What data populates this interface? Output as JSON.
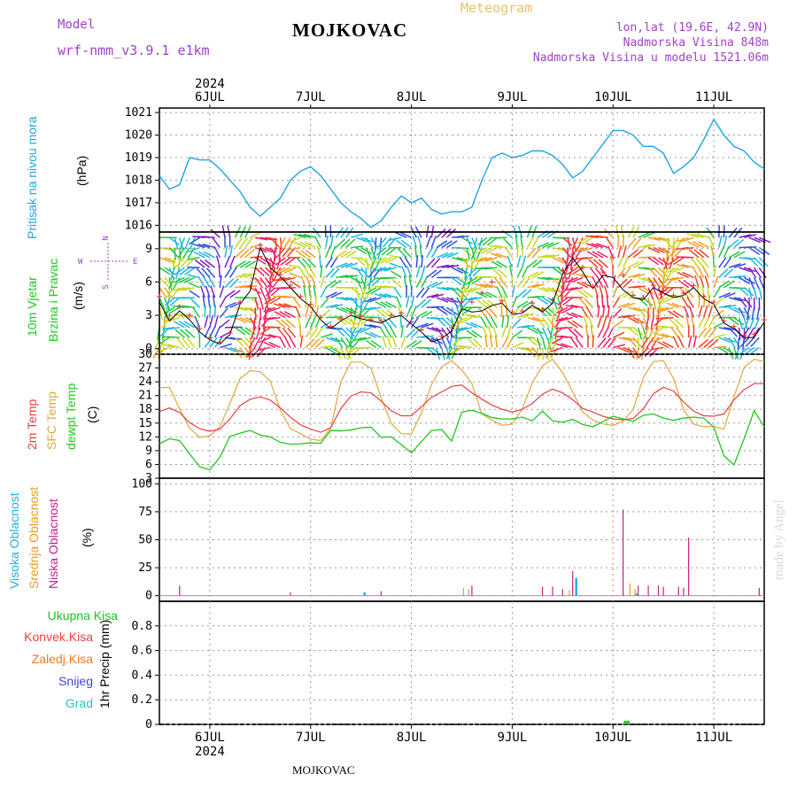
{
  "header": {
    "model_label": "Model",
    "model_name": "wrf-nmm_v3.9.1 e1km",
    "title": "MOJKOVAC",
    "meteogram_label": "Meteogram",
    "lonlat": "lon,lat (19.6E, 42.9N)",
    "altitude": "Nadmorska Visina 848m",
    "model_altitude": "Nadmorska Visina u modelu 1521.06m",
    "footer_title": "MOJKOVAC",
    "credit": "made by Angel",
    "year_top": "2024",
    "year_bottom": "2024"
  },
  "days": [
    "6JUL",
    "7JUL",
    "8JUL",
    "9JUL",
    "10JUL",
    "11JUL"
  ],
  "colors": {
    "pressure": "#1ea5e0",
    "t2m": "#e84040",
    "sfc": "#e0a840",
    "dewpt": "#20c820",
    "high_cloud": "#20b0e8",
    "mid_cloud": "#e0a020",
    "low_cloud": "#c0208a",
    "wind_speed": "#000000",
    "wind_gust": "#e83030",
    "total_precip": "#20c020",
    "conv_precip": "#e84040",
    "frozen_precip": "#f07820",
    "snow": "#4040e0",
    "hail": "#20c8c0"
  },
  "panels": {
    "pressure": {
      "label1": "Pritisak na nivou mora",
      "unit": "(hPa)"
    },
    "wind": {
      "label1": "10m Vjetar",
      "label2": "Brzina i Pravac",
      "unit": "(m/s)",
      "compass_n": "N",
      "compass_w": "W",
      "compass_e": "E",
      "compass_s": "S"
    },
    "temp": {
      "label1": "2m Temp",
      "label2": "SFC Temp",
      "label3": "dewpt Temp",
      "unit": "(C)"
    },
    "cloud": {
      "label1": "Visoka Oblacnost",
      "label2": "Srednja Oblacnost",
      "label3": "Niska Oblacnost",
      "unit": "(%)"
    },
    "precip": {
      "label1": "Ukupna Kisa",
      "label2": "Konvek.Kisa",
      "label3": "Zaledj.Kisa",
      "label4": "Snijeg",
      "label5": "Grad",
      "unit": "1hr Precip (mm)"
    }
  },
  "chart_data": [
    {
      "type": "line",
      "title": "Pritisak na nivou mora",
      "ylabel": "(hPa)",
      "ylim": [
        1015.7,
        1021.2
      ],
      "yticks": [
        1016,
        1017,
        1018,
        1019,
        1020,
        1021
      ],
      "x_days": [
        5.5,
        11.5
      ],
      "x": [
        5.5,
        5.6,
        5.7,
        5.8,
        5.9,
        6.0,
        6.1,
        6.2,
        6.3,
        6.4,
        6.5,
        6.6,
        6.7,
        6.8,
        6.9,
        7.0,
        7.1,
        7.2,
        7.3,
        7.4,
        7.5,
        7.6,
        7.7,
        7.8,
        7.9,
        8.0,
        8.1,
        8.2,
        8.3,
        8.4,
        8.5,
        8.6,
        8.7,
        8.8,
        8.9,
        9.0,
        9.1,
        9.2,
        9.3,
        9.4,
        9.5,
        9.6,
        9.7,
        9.8,
        9.9,
        10.0,
        10.1,
        10.2,
        10.3,
        10.4,
        10.5,
        10.6,
        10.7,
        10.8,
        10.9,
        11.0,
        11.1,
        11.2,
        11.3,
        11.4,
        11.5
      ],
      "series": [
        {
          "values": [
            1018.2,
            1017.6,
            1017.8,
            1019.0,
            1018.9,
            1018.9,
            1018.5,
            1018.0,
            1017.5,
            1016.8,
            1016.4,
            1016.8,
            1017.2,
            1018.0,
            1018.4,
            1018.6,
            1018.2,
            1017.6,
            1017.0,
            1016.6,
            1016.3,
            1015.9,
            1016.2,
            1016.8,
            1017.3,
            1017.0,
            1017.2,
            1016.7,
            1016.5,
            1016.6,
            1016.6,
            1016.8,
            1018.0,
            1019.0,
            1019.2,
            1019.0,
            1019.1,
            1019.3,
            1019.3,
            1019.1,
            1018.7,
            1018.1,
            1018.4,
            1019.0,
            1019.6,
            1020.2,
            1020.2,
            1020.0,
            1019.5,
            1019.5,
            1019.2,
            1018.3,
            1018.6,
            1019.0,
            1019.8,
            1020.7,
            1020.0,
            1019.5,
            1019.3,
            1018.8,
            1018.5
          ]
        }
      ]
    },
    {
      "type": "line",
      "title": "10m Vjetar Brzina i Pravac",
      "ylabel": "(m/s)",
      "ylim": [
        -0.5,
        10.5
      ],
      "yticks": [
        0,
        3,
        6,
        9
      ],
      "series": [
        {
          "name": "speed",
          "values": [
            4.2,
            2.5,
            3.4,
            2.6,
            1.5,
            0.8,
            0.4,
            1.3,
            4.0,
            5.2,
            9.1,
            7.3,
            6.5,
            5.5,
            4.5,
            3.8,
            2.6,
            1.8,
            2.5,
            3.0,
            2.7,
            2.5,
            2.3,
            2.8,
            3.0,
            2.2,
            1.5,
            0.6,
            0.9,
            1.6,
            3.6,
            3.3,
            3.4,
            3.9,
            4.1,
            3.1,
            3.2,
            3.9,
            3.3,
            4.1,
            6.7,
            8.2,
            6.9,
            5.4,
            6.6,
            6.4,
            5.3,
            4.6,
            4.4,
            5.5,
            5.0,
            4.6,
            4.8,
            5.5,
            4.5,
            4.0,
            2.3,
            1.8,
            1.0,
            1.0,
            2.4
          ]
        },
        {
          "name": "gust",
          "values": [
            4.7,
            3.0,
            3.8,
            3.0,
            1.8,
            1.0,
            0.6,
            1.4,
            4.2,
            5.6,
            9.3,
            7.5,
            6.7,
            5.7,
            4.7,
            4.0,
            2.8,
            2.0,
            2.7,
            3.2,
            2.9,
            2.6,
            2.5,
            3.0,
            3.2,
            2.4,
            1.7,
            0.8,
            1.1,
            1.9,
            4.2,
            4.2,
            5.0,
            6.0,
            4.3,
            3.3,
            3.4,
            4.1,
            3.5,
            4.4,
            7.0,
            8.5,
            7.3,
            5.6,
            6.9,
            8.2,
            6.6,
            4.8,
            4.6,
            5.7,
            5.2,
            4.8,
            5.0,
            5.7,
            4.7,
            4.2,
            2.5,
            2.0,
            1.2,
            1.3,
            2.6
          ]
        }
      ]
    },
    {
      "type": "line",
      "title": "2m Temp / SFC Temp / dewpt Temp",
      "ylabel": "(C)",
      "ylim": [
        3,
        30
      ],
      "yticks": [
        3,
        6,
        9,
        12,
        15,
        18,
        21,
        24,
        27,
        30
      ],
      "series": [
        {
          "name": "2m Temp",
          "values": [
            17.5,
            18.3,
            17.3,
            15.1,
            13.8,
            13.2,
            13.7,
            15.9,
            18.8,
            20.2,
            20.7,
            20.0,
            18.3,
            16.3,
            14.6,
            13.7,
            13.0,
            14.0,
            18.2,
            20.9,
            21.8,
            21.6,
            19.8,
            17.7,
            16.6,
            16.6,
            18.6,
            20.6,
            21.8,
            23.0,
            23.3,
            21.6,
            20.2,
            18.9,
            18.0,
            17.4,
            18.0,
            19.3,
            21.3,
            22.4,
            21.6,
            20.1,
            18.2,
            17.4,
            16.5,
            15.9,
            15.7,
            16.0,
            18.1,
            21.4,
            22.8,
            22.0,
            19.6,
            17.6,
            16.6,
            16.5,
            17.0,
            20.1,
            22.3,
            23.6,
            23.6
          ]
        },
        {
          "name": "SFC Temp",
          "values": [
            22.7,
            22.8,
            18.1,
            13.9,
            11.9,
            12.2,
            14.2,
            19.3,
            24.7,
            26.4,
            26.2,
            24.1,
            17.8,
            13.8,
            12.7,
            11.5,
            11.2,
            13.9,
            24.0,
            28.3,
            28.3,
            26.9,
            20.5,
            14.9,
            12.7,
            12.6,
            17.2,
            23.4,
            27.3,
            28.6,
            26.6,
            23.6,
            17.0,
            15.6,
            14.5,
            14.8,
            18.1,
            23.8,
            27.5,
            28.9,
            26.0,
            21.8,
            17.4,
            15.7,
            14.8,
            14.5,
            15.4,
            18.0,
            24.9,
            28.4,
            28.6,
            24.7,
            17.9,
            14.8,
            14.2,
            14.3,
            13.7,
            20.7,
            27.1,
            28.9,
            28.4
          ]
        },
        {
          "name": "dewpt Temp",
          "values": [
            10.5,
            11.6,
            11.2,
            8.3,
            5.5,
            4.8,
            7.6,
            12.1,
            12.8,
            13.4,
            12.4,
            12.0,
            10.8,
            10.4,
            10.5,
            10.7,
            10.6,
            13.4,
            13.3,
            13.5,
            14.0,
            14.1,
            11.9,
            12.0,
            10.3,
            8.5,
            11.0,
            13.4,
            13.6,
            11.1,
            17.4,
            17.8,
            17.1,
            16.2,
            15.9,
            15.9,
            16.3,
            15.5,
            17.6,
            15.5,
            15.2,
            15.8,
            14.7,
            14.2,
            15.3,
            16.5,
            15.9,
            15.4,
            16.7,
            17.0,
            16.1,
            15.6,
            16.1,
            16.3,
            16.1,
            14.1,
            7.9,
            5.9,
            11.6,
            17.7,
            14.2
          ]
        }
      ]
    },
    {
      "type": "bar",
      "title": "Visoka / Srednja / Niska Oblacnost",
      "ylabel": "(%)",
      "ylim": [
        -5,
        105
      ],
      "yticks": [
        0,
        25,
        50,
        75,
        100
      ],
      "series": [
        {
          "name": "Niska Oblacnost",
          "points": [
            [
              5.7,
              9
            ],
            [
              6.8,
              3
            ],
            [
              7.7,
              4
            ],
            [
              8.6,
              9
            ],
            [
              9.3,
              8
            ],
            [
              9.4,
              8
            ],
            [
              9.5,
              6
            ],
            [
              9.6,
              22
            ],
            [
              10.1,
              77
            ],
            [
              10.25,
              9
            ],
            [
              10.35,
              9
            ],
            [
              10.45,
              9
            ],
            [
              10.5,
              8
            ],
            [
              10.65,
              8
            ],
            [
              10.7,
              7
            ],
            [
              10.75,
              52
            ],
            [
              11.45,
              7
            ]
          ]
        },
        {
          "name": "Srednja Oblacnost",
          "points": [
            [
              8.5,
              7
            ],
            [
              8.55,
              6
            ],
            [
              9.55,
              5
            ],
            [
              10.15,
              11
            ],
            [
              10.2,
              6
            ]
          ]
        },
        {
          "name": "Visoka Oblacnost",
          "points": [
            [
              7.5,
              3
            ],
            [
              9.6,
              16
            ],
            [
              10.2,
              2
            ]
          ]
        }
      ]
    },
    {
      "type": "bar",
      "title": "1hr Precip",
      "ylabel": "1hr Precip (mm)",
      "ylim": [
        0,
        1.0
      ],
      "yticks": [
        0,
        0.2,
        0.4,
        0.6,
        0.8
      ],
      "series": [
        {
          "name": "Ukupna Kisa",
          "points": [
            [
              10.12,
              0.03
            ],
            [
              10.15,
              0.03
            ]
          ]
        },
        {
          "name": "Konvek.Kisa",
          "points": []
        },
        {
          "name": "Zaledj.Kisa",
          "points": []
        },
        {
          "name": "Snijeg",
          "points": []
        },
        {
          "name": "Grad",
          "points": []
        }
      ]
    }
  ]
}
